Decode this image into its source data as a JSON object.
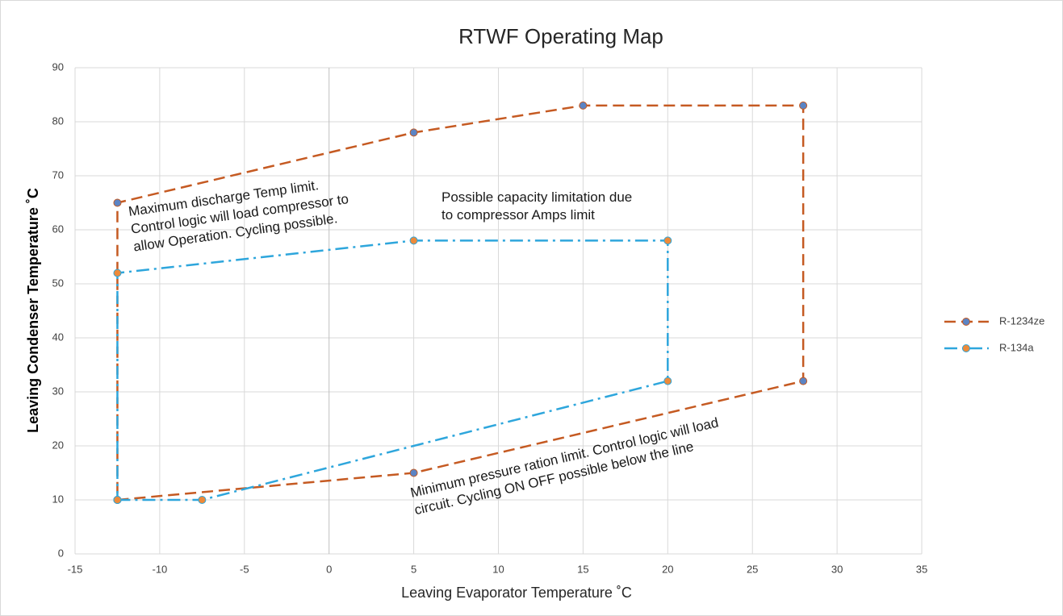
{
  "chart_data": {
    "type": "line",
    "title": "RTWF Operating Map",
    "x_label": "Leaving Evaporator Temperature ˚C",
    "y_label": "Leaving Condenser Temperature ˚C",
    "xlim": [
      -15,
      35
    ],
    "xticks": [
      -15,
      -10,
      -5,
      0,
      5,
      10,
      15,
      20,
      25,
      30,
      35
    ],
    "ylim": [
      0,
      90
    ],
    "yticks": [
      0,
      10,
      20,
      30,
      40,
      50,
      60,
      70,
      80,
      90
    ],
    "grid": true,
    "legend": "right",
    "series": [
      {
        "name": "R-1234ze",
        "color": "#c55a22",
        "marker_color": "#5b84c4",
        "line_style": "dashed",
        "x": [
          -12.5,
          5,
          28,
          28,
          15,
          5,
          -12.5,
          -12.5
        ],
        "values": [
          10,
          15,
          32,
          83,
          83,
          78,
          65,
          10
        ]
      },
      {
        "name": "R-134a",
        "color": "#2ea6dc",
        "marker_color": "#ed8a3a",
        "line_style": "dashdot",
        "x": [
          -12.5,
          -7.5,
          20,
          20,
          5,
          -12.5,
          -12.5
        ],
        "values": [
          10,
          10,
          32,
          58,
          58,
          52,
          10
        ]
      }
    ],
    "annotations": [
      [
        "Maximum discharge Temp limit.",
        "Control logic will load compressor to",
        "allow Operation. Cycling possible."
      ],
      [
        "Possible capacity limitation due",
        "to compressor Amps limit"
      ],
      [
        "Minimum pressure ration limit. Control logic will load",
        "circuit. Cycling ON OFF possible below the line"
      ]
    ]
  }
}
